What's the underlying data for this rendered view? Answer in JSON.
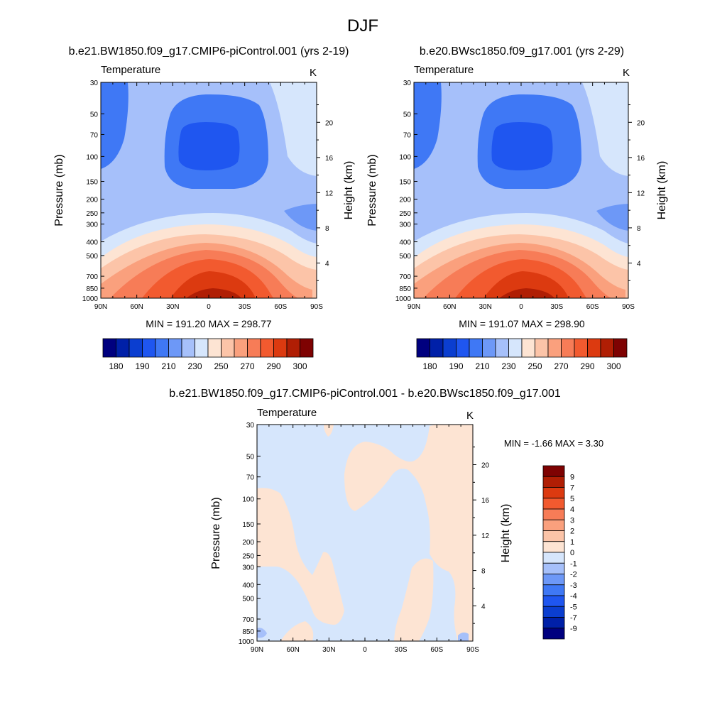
{
  "figure": {
    "title": "DJF",
    "colors": {
      "abs_scale": [
        "#00007f",
        "#0020a8",
        "#0b3ed0",
        "#1f56f0",
        "#3f78f5",
        "#6d98f7",
        "#a6c0fa",
        "#d6e6fc",
        "#fde4d3",
        "#fcc4a8",
        "#faa07d",
        "#f77c57",
        "#f25a2f",
        "#dc3a10",
        "#b01e04",
        "#7e0202"
      ],
      "diff_scale": [
        "#00007f",
        "#0020a8",
        "#0b3ed0",
        "#1f56f0",
        "#3f78f5",
        "#6d98f7",
        "#a6c0fa",
        "#d6e6fc",
        "#fde4d3",
        "#fcc4a8",
        "#faa07d",
        "#f77c57",
        "#f25a2f",
        "#dc3a10",
        "#b01e04",
        "#7e0202"
      ]
    }
  },
  "panels": [
    {
      "id": "case1",
      "title": "b.e21.BW1850.f09_g17.CMIP6-piControl.001 (yrs 2-19)",
      "left_label": "Temperature",
      "units": "K",
      "ylabel": "Pressure (mb)",
      "y2label": "Height (km)",
      "stats": "MIN = 191.20  MAX = 298.77",
      "colorbar_labels": [
        "180",
        "190",
        "210",
        "230",
        "250",
        "270",
        "290",
        "300"
      ]
    },
    {
      "id": "case2",
      "title": "b.e20.BWsc1850.f09_g17.001 (yrs 2-29)",
      "left_label": "Temperature",
      "units": "K",
      "ylabel": "Pressure (mb)",
      "y2label": "Height (km)",
      "stats": "MIN = 191.07  MAX = 298.90",
      "colorbar_labels": [
        "180",
        "190",
        "210",
        "230",
        "250",
        "270",
        "290",
        "300"
      ]
    },
    {
      "id": "diff",
      "title": "b.e21.BW1850.f09_g17.CMIP6-piControl.001 - b.e20.BWsc1850.f09_g17.001",
      "left_label": "Temperature",
      "units": "K",
      "ylabel": "Pressure (mb)",
      "y2label": "Height (km)",
      "stats": "MIN =  -1.66  MAX =   3.30",
      "colorbar_labels": [
        "9",
        "7",
        "5",
        "4",
        "3",
        "2",
        "1",
        "0",
        "-1",
        "-2",
        "-3",
        "-4",
        "-5",
        "-7",
        "-9"
      ]
    }
  ],
  "chart_data": [
    {
      "type": "heatmap",
      "name": "case1",
      "x_ticks": [
        "90N",
        "60N",
        "30N",
        "0",
        "30S",
        "60S",
        "90S"
      ],
      "x_values": [
        90,
        60,
        30,
        0,
        -30,
        -60,
        -90
      ],
      "y_ticks": [
        "30",
        "50",
        "70",
        "100",
        "150",
        "200",
        "250",
        "300",
        "400",
        "500",
        "700",
        "850",
        "1000"
      ],
      "y_values": [
        30,
        50,
        70,
        100,
        150,
        200,
        250,
        300,
        400,
        500,
        700,
        850,
        1000
      ],
      "y_scale": "log",
      "y_reversed": true,
      "y2_ticks": [
        "20",
        "16",
        "12",
        "8",
        "4"
      ],
      "y2_values": [
        20,
        16,
        12,
        8,
        4
      ],
      "xlim": [
        90,
        -90
      ],
      "ylim": [
        30,
        1000
      ],
      "min": 191.2,
      "max": 298.77
    },
    {
      "type": "heatmap",
      "name": "case2",
      "x_ticks": [
        "90N",
        "60N",
        "30N",
        "0",
        "30S",
        "60S",
        "90S"
      ],
      "x_values": [
        90,
        60,
        30,
        0,
        -30,
        -60,
        -90
      ],
      "y_ticks": [
        "30",
        "50",
        "70",
        "100",
        "150",
        "200",
        "250",
        "300",
        "400",
        "500",
        "700",
        "850",
        "1000"
      ],
      "y_values": [
        30,
        50,
        70,
        100,
        150,
        200,
        250,
        300,
        400,
        500,
        700,
        850,
        1000
      ],
      "y_scale": "log",
      "y_reversed": true,
      "y2_ticks": [
        "20",
        "16",
        "12",
        "8",
        "4"
      ],
      "y2_values": [
        20,
        16,
        12,
        8,
        4
      ],
      "xlim": [
        90,
        -90
      ],
      "ylim": [
        30,
        1000
      ],
      "min": 191.07,
      "max": 298.9
    },
    {
      "type": "heatmap",
      "name": "diff",
      "x_ticks": [
        "90N",
        "60N",
        "30N",
        "0",
        "30S",
        "60S",
        "90S"
      ],
      "x_values": [
        90,
        60,
        30,
        0,
        -30,
        -60,
        -90
      ],
      "y_ticks": [
        "30",
        "50",
        "70",
        "100",
        "150",
        "200",
        "250",
        "300",
        "400",
        "500",
        "700",
        "850",
        "1000"
      ],
      "y_values": [
        30,
        50,
        70,
        100,
        150,
        200,
        250,
        300,
        400,
        500,
        700,
        850,
        1000
      ],
      "y_scale": "log",
      "y_reversed": true,
      "y2_ticks": [
        "20",
        "16",
        "12",
        "8",
        "4"
      ],
      "y2_values": [
        20,
        16,
        12,
        8,
        4
      ],
      "xlim": [
        90,
        -90
      ],
      "ylim": [
        30,
        1000
      ],
      "min": -1.66,
      "max": 3.3
    }
  ]
}
